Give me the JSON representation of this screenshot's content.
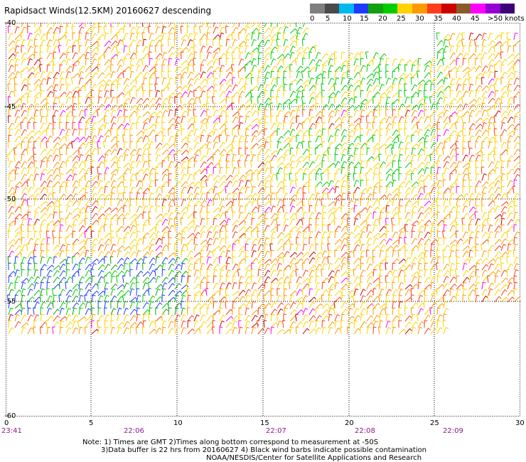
{
  "title": "Rapidsact Winds(12.5KM) 20160627 descending",
  "legend": {
    "colors": [
      "#7f7f7f",
      "#4a4a4a",
      "#00b8f0",
      "#1e3cff",
      "#10a010",
      "#00cc00",
      "#ffd200",
      "#ff9900",
      "#ff3d1e",
      "#cc0000",
      "#8a5a2b",
      "#ff00ff",
      "#9400d3",
      "#3c0078"
    ],
    "labels": [
      "0",
      "5",
      "10",
      "15",
      "20",
      "25",
      "30",
      "35",
      "40",
      "45",
      ">50 knots"
    ]
  },
  "axes": {
    "lat_labels": [
      "-40",
      "-45",
      "-50",
      "-55",
      "-60"
    ],
    "lon_labels": [
      "0",
      "5",
      "10",
      "15",
      "20",
      "25",
      "30"
    ],
    "time_labels": [
      "23:41",
      "22:06",
      "22:07",
      "22:08",
      "22:09"
    ]
  },
  "notes": [
    "Note: 1) Times are GMT 2)Times along bottom correspond to measurement at -50S",
    "3)Data buffer is 22 hrs from 20160627 4) Black wind barbs indicate possible contamination",
    "NOAA/NESDIS/Center for Satellite Applications and Research"
  ]
}
